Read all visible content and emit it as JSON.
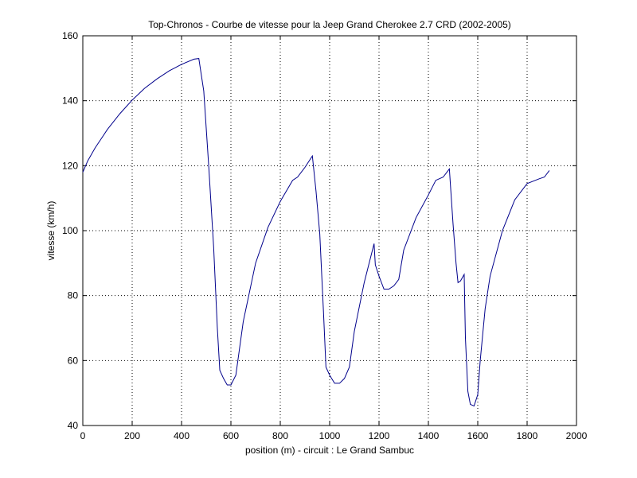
{
  "chart_data": {
    "type": "line",
    "title": "Top-Chronos - Courbe de vitesse pour la Jeep Grand Cherokee 2.7 CRD (2002-2005)",
    "xlabel": "position (m) - circuit : Le Grand Sambuc",
    "ylabel": "vitesse (km/h)",
    "xlim": [
      0,
      2000
    ],
    "ylim": [
      40,
      160
    ],
    "xticks": [
      "0",
      "200",
      "400",
      "600",
      "800",
      "1000",
      "1200",
      "1400",
      "1600",
      "1800",
      "2000"
    ],
    "yticks": [
      "40",
      "60",
      "80",
      "100",
      "120",
      "140",
      "160"
    ],
    "grid": true,
    "line_color": "#00008b",
    "series": [
      {
        "x": [
          0,
          20,
          50,
          100,
          150,
          200,
          250,
          300,
          350,
          400,
          450,
          470,
          490,
          510,
          530,
          545,
          555,
          570,
          585,
          600,
          620,
          650,
          700,
          750,
          800,
          850,
          870,
          900,
          930,
          945,
          960,
          975,
          985,
          1000,
          1020,
          1040,
          1060,
          1080,
          1100,
          1140,
          1180,
          1185,
          1200,
          1220,
          1240,
          1260,
          1280,
          1300,
          1350,
          1400,
          1430,
          1460,
          1485,
          1500,
          1512,
          1520,
          1530,
          1545,
          1550,
          1560,
          1570,
          1585,
          1600,
          1610,
          1630,
          1650,
          1700,
          1750,
          1800,
          1850,
          1870,
          1890
        ],
        "y": [
          118,
          121.5,
          125.5,
          131.2,
          136,
          140.2,
          143.8,
          146.7,
          149.2,
          151.2,
          152.8,
          153,
          143,
          120,
          95,
          70,
          57,
          54.5,
          52.5,
          52.5,
          55.5,
          72,
          90,
          101,
          109,
          115.5,
          116.5,
          119.5,
          123,
          112,
          99,
          75,
          58,
          55.5,
          53,
          53,
          54.5,
          58,
          69,
          84,
          96,
          89.5,
          86,
          82,
          82,
          83,
          85,
          94,
          104,
          111,
          115.5,
          116.5,
          119,
          102,
          90,
          84,
          84.5,
          86.5,
          67,
          50.5,
          46.5,
          46,
          49.5,
          60,
          76,
          86,
          100,
          109.5,
          114.5,
          116,
          116.5,
          118.5
        ]
      }
    ]
  }
}
